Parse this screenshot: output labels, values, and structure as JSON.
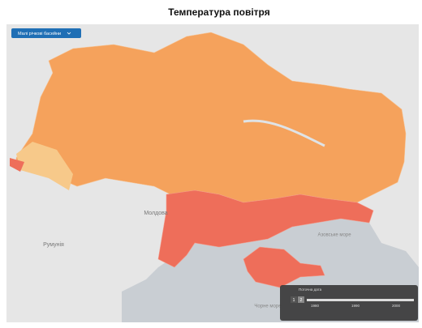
{
  "title": "Температура  повітря",
  "dropdown": {
    "label": "Малі річкові басейни"
  },
  "map_labels": {
    "moldova": "Молдова",
    "romania": "Румунія",
    "azov_sea": "Азовське море",
    "black_sea": "Чорне море"
  },
  "timeline": {
    "title": "Поточна дата",
    "buttons": [
      "1",
      "2"
    ],
    "ticks": [
      "1980",
      "1990",
      "2000"
    ]
  }
}
